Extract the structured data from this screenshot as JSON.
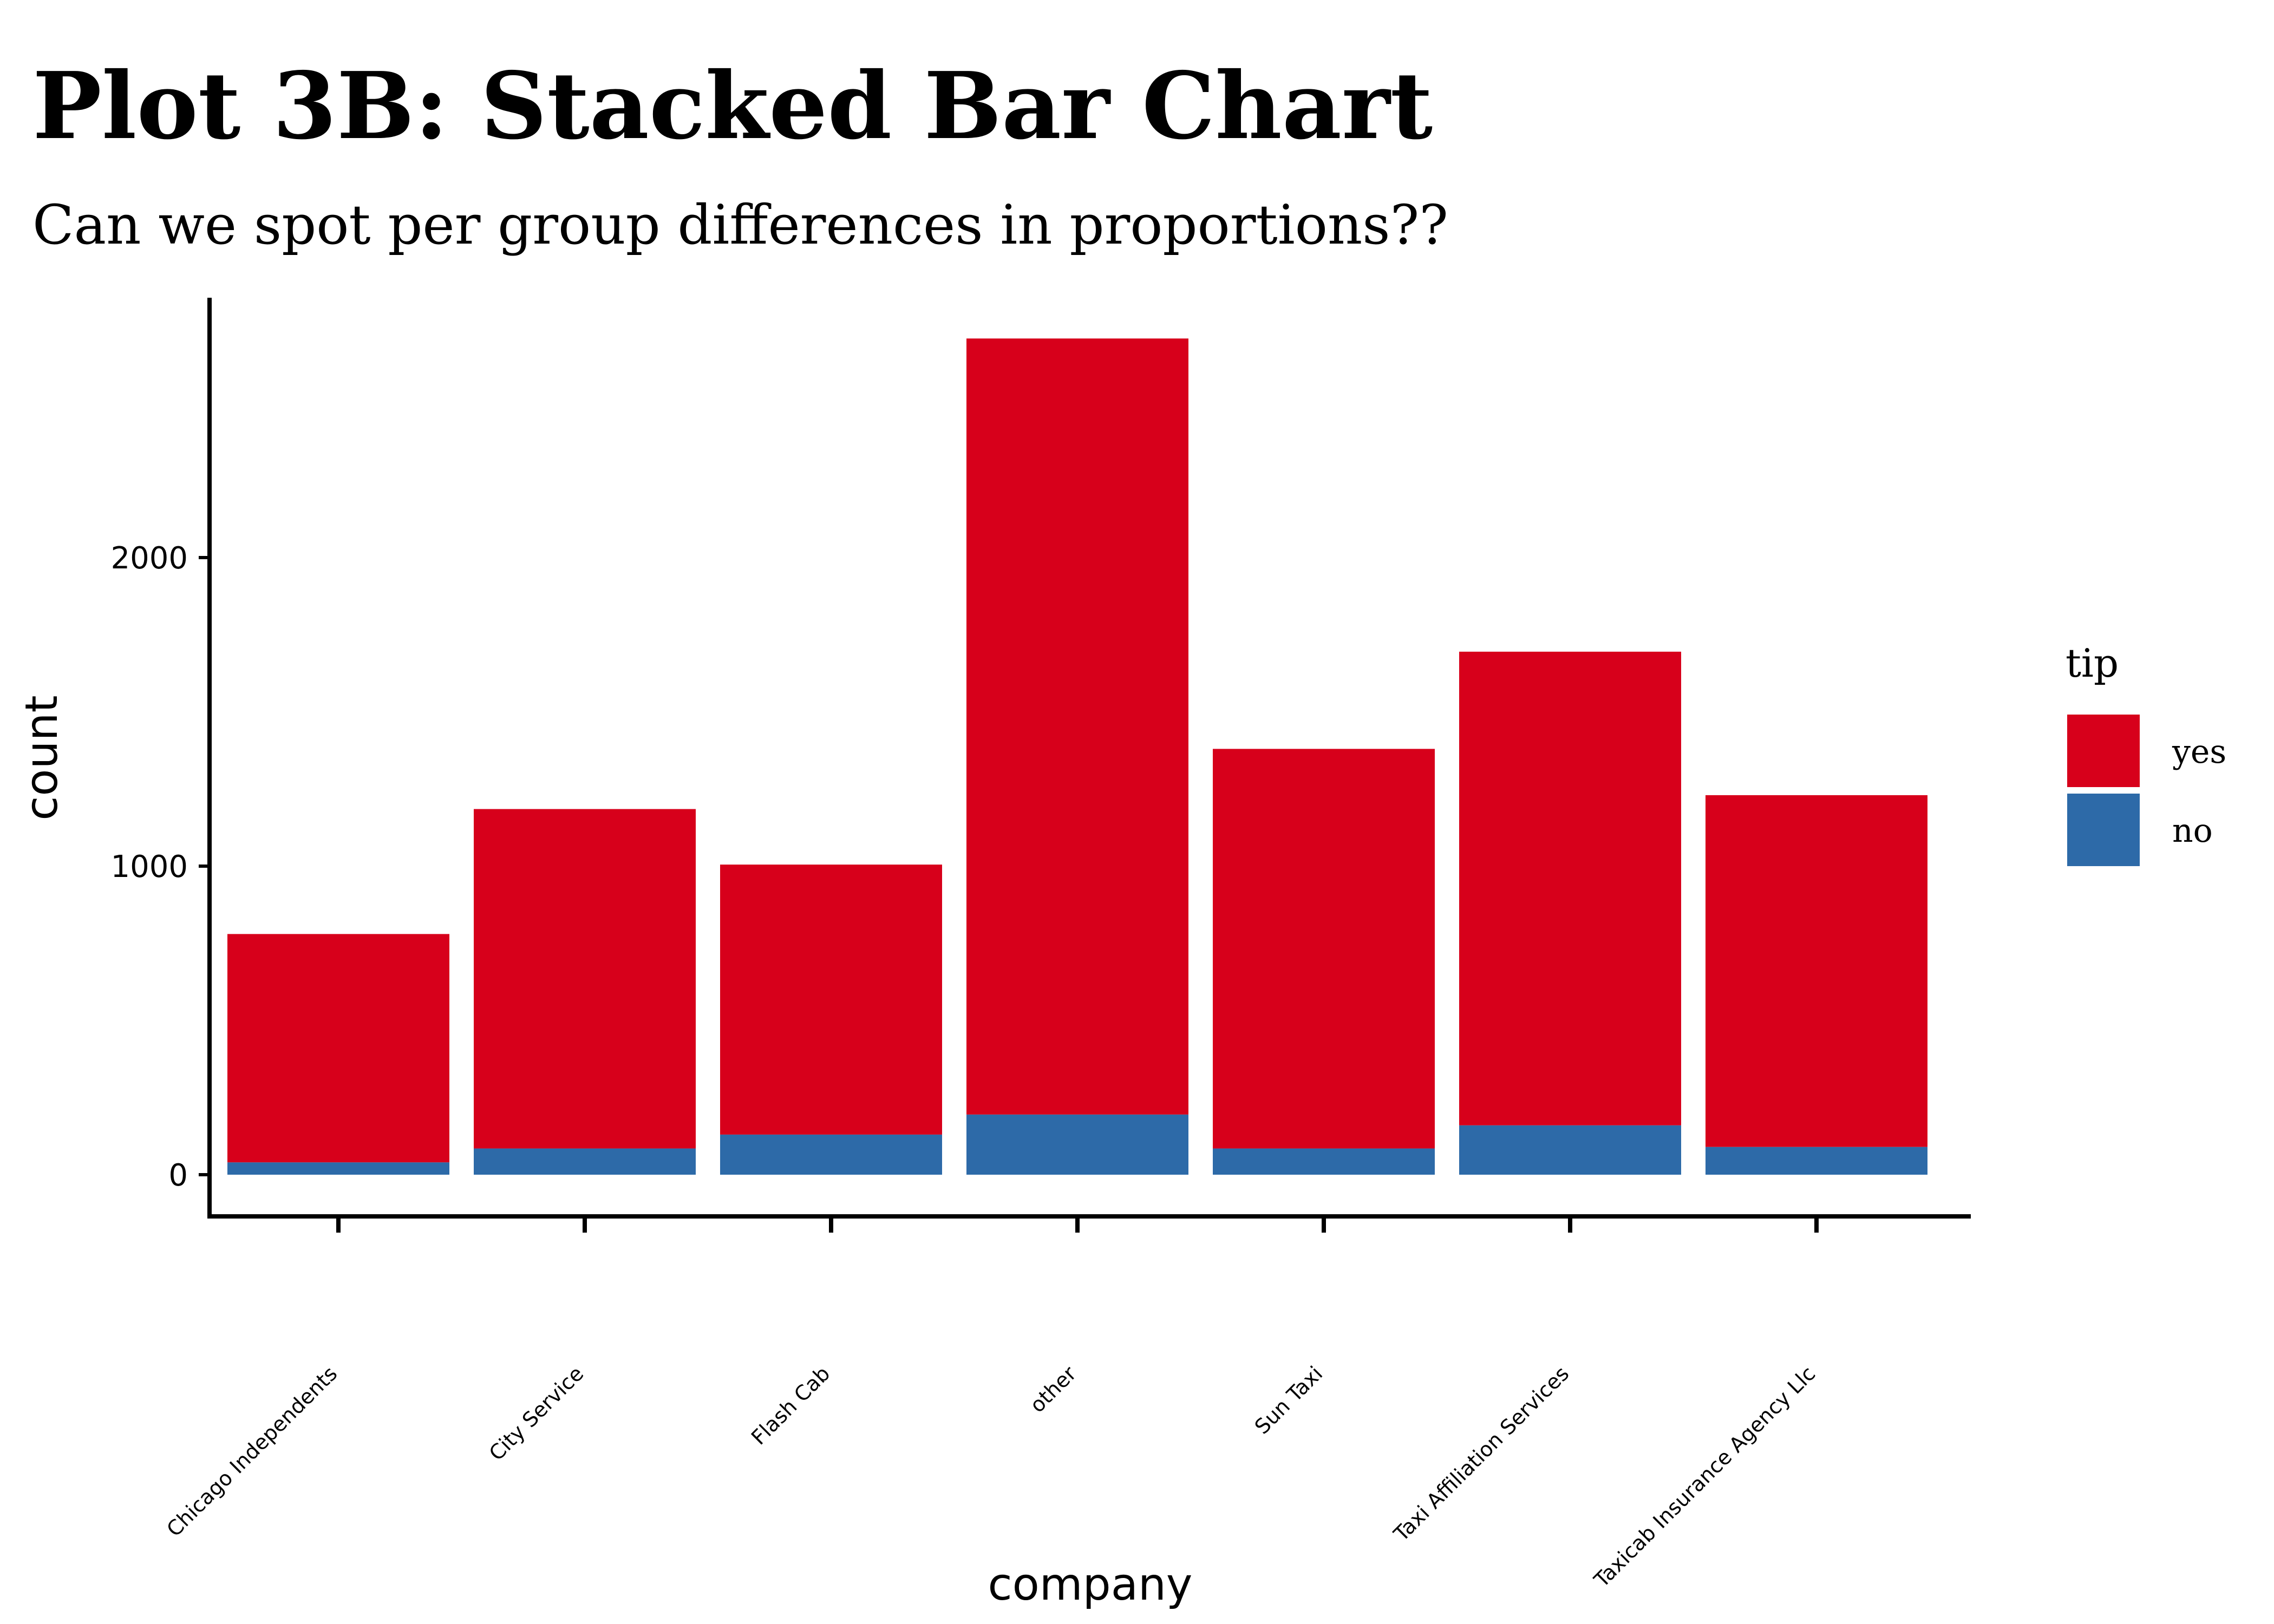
{
  "chart_data": {
    "type": "bar",
    "stacked": true,
    "title": "Plot 3B: Stacked Bar Chart",
    "subtitle": "Can we spot per group differences in proportions??",
    "xlabel": "company",
    "ylabel": "count",
    "ylim": [
      0,
      2700
    ],
    "yticks": [
      0,
      1000,
      2000
    ],
    "grid": false,
    "legend": {
      "title": "tip",
      "position": "right"
    },
    "categories": [
      "Chicago Independents",
      "City Service",
      "Flash Cab",
      "other",
      "Sun Taxi",
      "Taxi Affiliation Services",
      "Taxicab Insurance Agency Llc"
    ],
    "series": [
      {
        "name": "no",
        "color": "#2D6AA8",
        "values": [
          40,
          85,
          130,
          195,
          85,
          160,
          90
        ]
      },
      {
        "name": "yes",
        "color": "#D7001B",
        "values": [
          740,
          1100,
          875,
          2515,
          1295,
          1535,
          1140
        ]
      }
    ],
    "legend_order": [
      "yes",
      "no"
    ]
  }
}
